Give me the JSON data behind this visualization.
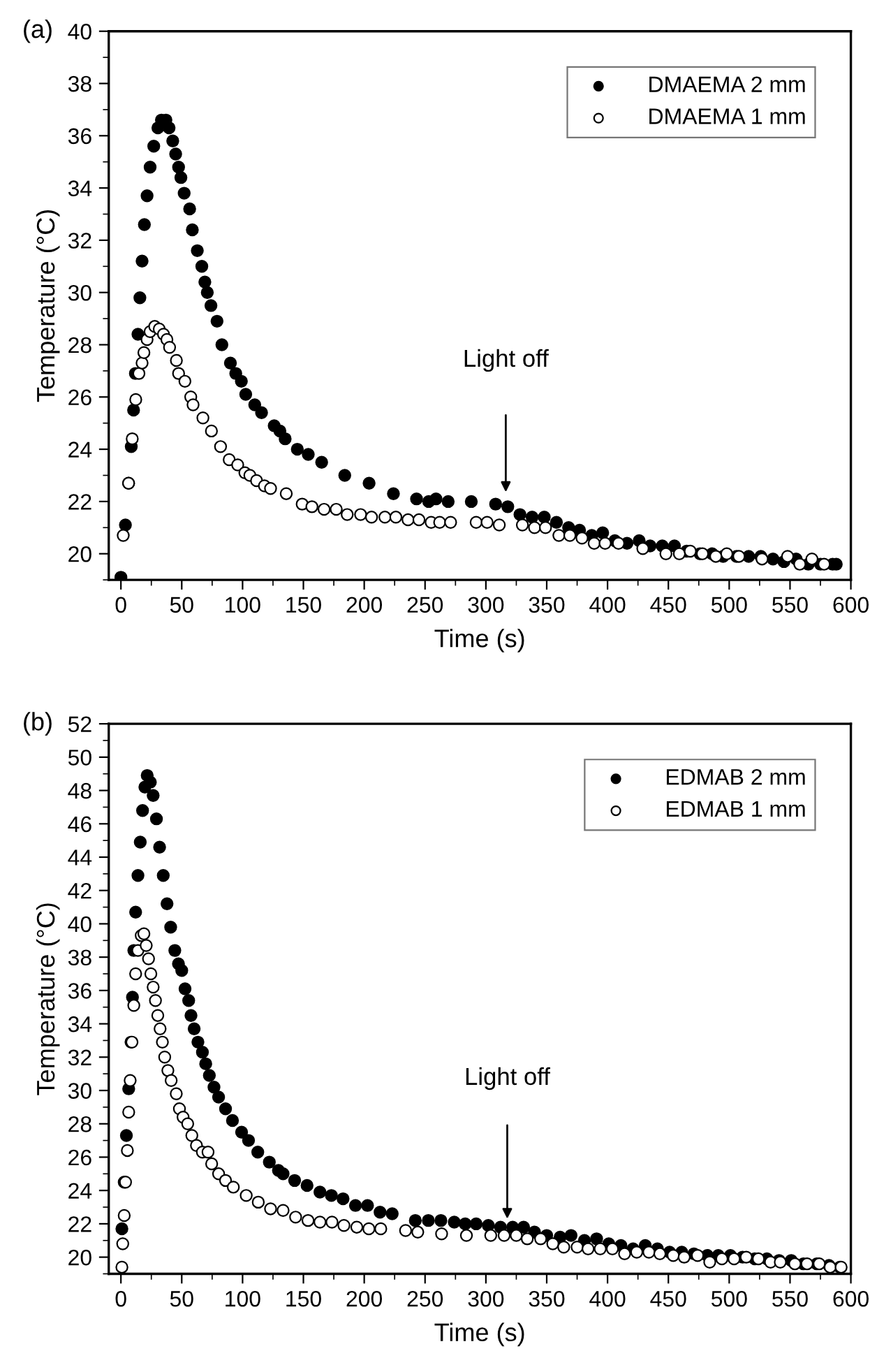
{
  "chart_data": [
    {
      "type": "scatter",
      "title": "(a)",
      "xlabel": "Time (s)",
      "ylabel": "Temperature (°C)",
      "xlim": [
        -10,
        600
      ],
      "ylim": [
        19,
        40
      ],
      "xticks": [
        0,
        {
          "value": 25,
          "label": null
        },
        50,
        {
          "value": 75,
          "label": null
        },
        100,
        {
          "value": 125,
          "label": null
        },
        150,
        {
          "value": 175,
          "label": null
        },
        200,
        {
          "value": 225,
          "label": null
        },
        250,
        {
          "value": 275,
          "label": null
        },
        300,
        {
          "value": 325,
          "label": null
        },
        350,
        {
          "value": 375,
          "label": null
        },
        400,
        {
          "value": 425,
          "label": null
        },
        450,
        {
          "value": 475,
          "label": null
        },
        500,
        {
          "value": 525,
          "label": null
        },
        550,
        {
          "value": 575,
          "label": null
        },
        600
      ],
      "yticks": [
        {
          "value": 19,
          "label": null
        },
        20,
        {
          "value": 21,
          "label": null
        },
        22,
        {
          "value": 23,
          "label": null
        },
        24,
        {
          "value": 25,
          "label": null
        },
        26,
        {
          "value": 27,
          "label": null
        },
        28,
        {
          "value": 29,
          "label": null
        },
        30,
        {
          "value": 31,
          "label": null
        },
        32,
        {
          "value": 33,
          "label": null
        },
        34,
        {
          "value": 35,
          "label": null
        },
        36,
        {
          "value": 37,
          "label": null
        },
        38,
        {
          "value": 39,
          "label": null
        },
        40
      ],
      "legend": "top right",
      "grid": false,
      "marker": "circle",
      "annotations": [
        "Light off"
      ],
      "series": [
        {
          "name": "DMAEMA 2 mm",
          "color": "#000000",
          "x": [
            0,
            3.7,
            6.3,
            8.5,
            10.4,
            11.9,
            14,
            15.6,
            17.4,
            19.3,
            21.5,
            24,
            27,
            30.4,
            33.3,
            37,
            39.6,
            42.6,
            45,
            47.4,
            49.3,
            52,
            56.5,
            58.7,
            62.8,
            66.5,
            69,
            71,
            74,
            79,
            83,
            90,
            94.4,
            99,
            102.6,
            110,
            115.6,
            126,
            130.7,
            135,
            145,
            154,
            165,
            184,
            204,
            224,
            243,
            253,
            259,
            269,
            288,
            308,
            318,
            328,
            338,
            348,
            358,
            368,
            377,
            387,
            396,
            406,
            416,
            426,
            435,
            445,
            455,
            465,
            476,
            486,
            495,
            506,
            516,
            526,
            536,
            545,
            555,
            565,
            575,
            585,
            588
          ],
          "values": [
            19.1,
            21.1,
            22.7,
            24.1,
            25.5,
            26.9,
            28.4,
            29.8,
            31.2,
            32.6,
            33.7,
            34.8,
            35.6,
            36.3,
            36.6,
            36.6,
            36.3,
            35.8,
            35.3,
            34.8,
            34.4,
            33.8,
            33.2,
            32.4,
            31.6,
            31.0,
            30.4,
            30.0,
            29.5,
            28.9,
            28.0,
            27.3,
            26.9,
            26.6,
            26.1,
            25.7,
            25.4,
            24.9,
            24.7,
            24.4,
            24.0,
            23.8,
            23.5,
            23.0,
            22.7,
            22.3,
            22.1,
            22.0,
            22.1,
            22.0,
            22.0,
            21.9,
            21.8,
            21.5,
            21.4,
            21.4,
            21.2,
            21.0,
            20.9,
            20.7,
            20.8,
            20.5,
            20.4,
            20.5,
            20.3,
            20.3,
            20.3,
            20.1,
            20.0,
            20.0,
            19.9,
            19.9,
            19.9,
            19.9,
            19.8,
            19.7,
            19.8,
            19.6,
            19.6,
            19.6,
            19.6
          ]
        },
        {
          "name": "DMAEMA 1 mm",
          "color": "#ffffff",
          "x": [
            1.9,
            6.3,
            9.3,
            12.2,
            14.8,
            17.4,
            18.9,
            21.5,
            24,
            27.8,
            31.5,
            35,
            37.8,
            40,
            45.6,
            47.4,
            52.6,
            57.4,
            59.3,
            67.4,
            74.4,
            81.9,
            89,
            96,
            101.9,
            106,
            111.5,
            118,
            123,
            135.9,
            149,
            157,
            167,
            177,
            186,
            197,
            206,
            217,
            226,
            236,
            245,
            255,
            262,
            271,
            292,
            301,
            311,
            330,
            340,
            349,
            360,
            369,
            379,
            389,
            398,
            409,
            429,
            448,
            459,
            468,
            478,
            489,
            498,
            508,
            527,
            548,
            558,
            568,
            578
          ],
          "values": [
            20.7,
            22.7,
            24.4,
            25.9,
            26.9,
            27.3,
            27.7,
            28.2,
            28.5,
            28.7,
            28.6,
            28.4,
            28.2,
            27.9,
            27.4,
            26.9,
            26.6,
            26.0,
            25.7,
            25.2,
            24.7,
            24.1,
            23.6,
            23.4,
            23.1,
            23.0,
            22.8,
            22.6,
            22.5,
            22.3,
            21.9,
            21.8,
            21.7,
            21.7,
            21.5,
            21.5,
            21.4,
            21.4,
            21.4,
            21.3,
            21.3,
            21.2,
            21.2,
            21.2,
            21.2,
            21.2,
            21.1,
            21.1,
            21.0,
            21.0,
            20.7,
            20.7,
            20.6,
            20.4,
            20.4,
            20.4,
            20.2,
            20.0,
            20.0,
            20.1,
            20.0,
            19.9,
            20.0,
            19.9,
            19.8,
            19.9,
            19.6,
            19.8,
            19.6
          ]
        }
      ]
    },
    {
      "type": "scatter",
      "title": "(b)",
      "xlabel": "Time (s)",
      "ylabel": "Temperature (°C)",
      "xlim": [
        -10,
        600
      ],
      "ylim": [
        19,
        52
      ],
      "xticks": [
        0,
        {
          "value": 25,
          "label": null
        },
        50,
        {
          "value": 75,
          "label": null
        },
        100,
        {
          "value": 125,
          "label": null
        },
        150,
        {
          "value": 175,
          "label": null
        },
        200,
        {
          "value": 225,
          "label": null
        },
        250,
        {
          "value": 275,
          "label": null
        },
        300,
        {
          "value": 325,
          "label": null
        },
        350,
        {
          "value": 375,
          "label": null
        },
        400,
        {
          "value": 425,
          "label": null
        },
        450,
        {
          "value": 475,
          "label": null
        },
        500,
        {
          "value": 525,
          "label": null
        },
        550,
        {
          "value": 575,
          "label": null
        },
        600
      ],
      "yticks": [
        {
          "value": 19,
          "label": null
        },
        20,
        {
          "value": 21,
          "label": null
        },
        22,
        {
          "value": 23,
          "label": null
        },
        24,
        {
          "value": 25,
          "label": null
        },
        26,
        {
          "value": 27,
          "label": null
        },
        28,
        {
          "value": 29,
          "label": null
        },
        30,
        {
          "value": 31,
          "label": null
        },
        32,
        {
          "value": 33,
          "label": null
        },
        34,
        {
          "value": 35,
          "label": null
        },
        36,
        {
          "value": 37,
          "label": null
        },
        38,
        {
          "value": 39,
          "label": null
        },
        40,
        {
          "value": 41,
          "label": null
        },
        42,
        {
          "value": 43,
          "label": null
        },
        44,
        {
          "value": 45,
          "label": null
        },
        46,
        {
          "value": 47,
          "label": null
        },
        48,
        {
          "value": 49,
          "label": null
        },
        50,
        {
          "value": 51,
          "label": null
        },
        52
      ],
      "legend": "top right",
      "grid": false,
      "marker": "circle",
      "annotations": [
        "Light off"
      ],
      "series": [
        {
          "name": "EDMAB 2 mm",
          "color": "#000000",
          "x": [
            0.8,
            2.7,
            4.5,
            6.4,
            8.3,
            9.5,
            10.6,
            12.1,
            14,
            15.9,
            17.8,
            19.7,
            21.6,
            24.2,
            26.5,
            29.2,
            31.8,
            34.8,
            37.9,
            40.9,
            44.3,
            47.3,
            50,
            52.7,
            55.7,
            57.6,
            60.2,
            63.3,
            67,
            69.7,
            72.7,
            76.5,
            80.3,
            86,
            91.7,
            99.2,
            104.9,
            112.5,
            122,
            129.5,
            133.3,
            142.8,
            153,
            163.6,
            173,
            182.6,
            192.8,
            202.7,
            213,
            223,
            242,
            252.7,
            263,
            274,
            283,
            292,
            302,
            312,
            322,
            331,
            340,
            350,
            361,
            370,
            381,
            391,
            401,
            411,
            421,
            431,
            441,
            451,
            461,
            471,
            482,
            491,
            501,
            511,
            521,
            531,
            541,
            551,
            561,
            572,
            582,
            591
          ],
          "values": [
            21.7,
            24.5,
            27.3,
            30.1,
            32.9,
            35.6,
            38.4,
            40.7,
            42.9,
            44.9,
            46.8,
            48.2,
            48.9,
            48.5,
            47.7,
            46.3,
            44.6,
            42.9,
            41.2,
            39.8,
            38.4,
            37.6,
            37.2,
            36.1,
            35.4,
            34.5,
            33.7,
            32.9,
            32.3,
            31.6,
            30.9,
            30.2,
            29.6,
            28.9,
            28.2,
            27.5,
            27.0,
            26.3,
            25.7,
            25.2,
            25.0,
            24.6,
            24.3,
            23.9,
            23.7,
            23.5,
            23.1,
            23.1,
            22.7,
            22.6,
            22.2,
            22.2,
            22.2,
            22.1,
            22.0,
            22.0,
            21.9,
            21.8,
            21.8,
            21.8,
            21.5,
            21.3,
            21.2,
            21.3,
            21.0,
            21.1,
            20.8,
            20.7,
            20.5,
            20.7,
            20.5,
            20.3,
            20.3,
            20.2,
            20.1,
            20.1,
            20.1,
            20.0,
            19.9,
            19.9,
            19.8,
            19.8,
            19.6,
            19.6,
            19.5,
            19.4
          ]
        },
        {
          "name": "EDMAB 1 mm",
          "color": "#ffffff",
          "x": [
            0.8,
            1.5,
            2.7,
            3.8,
            5.3,
            6.4,
            7.6,
            9.1,
            10.6,
            12.1,
            14,
            16.7,
            18.9,
            20.8,
            22.7,
            24.6,
            26.5,
            28.4,
            30.3,
            32.2,
            34.1,
            36,
            38.6,
            41.3,
            45.5,
            48.1,
            51.1,
            54.9,
            58.3,
            62.1,
            67,
            71.6,
            74.6,
            80.3,
            86,
            92.4,
            103,
            112.9,
            123,
            133.3,
            143.6,
            153.8,
            163.6,
            173.5,
            183.3,
            193.9,
            203.8,
            213.6,
            234,
            244,
            263.6,
            284,
            304,
            315,
            325,
            334,
            345,
            355,
            364,
            375,
            384,
            394,
            404,
            414,
            424,
            434,
            443,
            454,
            463,
            474,
            484,
            494,
            504,
            514,
            524,
            534,
            542,
            554,
            564,
            574,
            583,
            592
          ],
          "values": [
            19.4,
            20.8,
            22.5,
            24.5,
            26.4,
            28.7,
            30.6,
            32.9,
            35.1,
            37.0,
            38.4,
            39.3,
            39.4,
            38.7,
            37.9,
            37.0,
            36.2,
            35.4,
            34.5,
            33.7,
            32.9,
            32.0,
            31.2,
            30.6,
            29.8,
            28.9,
            28.4,
            28.0,
            27.3,
            26.7,
            26.3,
            26.3,
            25.6,
            25.0,
            24.6,
            24.2,
            23.7,
            23.3,
            22.9,
            22.8,
            22.4,
            22.2,
            22.1,
            22.1,
            21.9,
            21.8,
            21.7,
            21.7,
            21.6,
            21.5,
            21.4,
            21.3,
            21.3,
            21.3,
            21.3,
            21.1,
            21.1,
            20.8,
            20.6,
            20.6,
            20.5,
            20.5,
            20.5,
            20.2,
            20.3,
            20.3,
            20.2,
            20.1,
            20.0,
            20.1,
            19.7,
            19.9,
            19.9,
            20.0,
            19.9,
            19.7,
            19.7,
            19.6,
            19.6,
            19.6,
            19.4,
            19.4
          ]
        }
      ]
    }
  ]
}
